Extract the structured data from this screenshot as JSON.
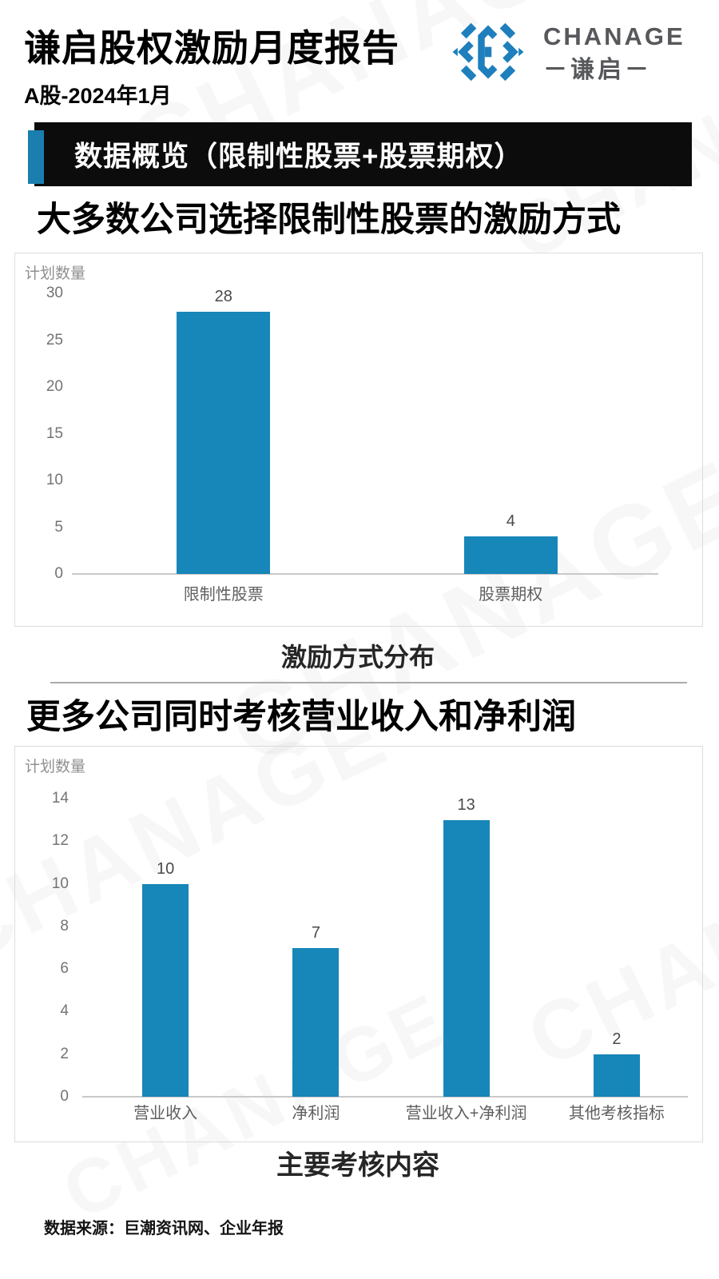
{
  "header": {
    "title": "谦启股权激励月度报告",
    "subtitle": "A股-2024年1月",
    "logo": {
      "brand": "CHANAGE",
      "brand_cn_display": "－谦启－",
      "icon": "diamond-c-icon"
    }
  },
  "banner": {
    "label": "数据概览（限制性股票+股票期权）"
  },
  "colors": {
    "bar": "#1786b8",
    "logo_blue": "#1e7fbc",
    "banner_accent": "#1a7fae",
    "banner_bg": "#0c0c0c"
  },
  "watermark_text": "CHANAGE",
  "chart_data": [
    {
      "type": "bar",
      "title": "大多数公司选择限制性股票的激励方式",
      "caption": "激励方式分布",
      "ylabel": "计划数量",
      "categories": [
        "限制性股票",
        "股票期权"
      ],
      "values": [
        28,
        4
      ],
      "ylim": [
        0,
        30
      ],
      "ytick_step": 5,
      "grid": false,
      "legend": "none",
      "bar_color": "#1786b8"
    },
    {
      "type": "bar",
      "title": "更多公司同时考核营业收入和净利润",
      "caption": "主要考核内容",
      "ylabel": "计划数量",
      "categories": [
        "营业收入",
        "净利润",
        "营业收入+净利润",
        "其他考核指标"
      ],
      "values": [
        10,
        7,
        13,
        2
      ],
      "ylim": [
        0,
        14
      ],
      "ytick_step": 2,
      "grid": false,
      "legend": "none",
      "bar_color": "#1786b8"
    }
  ],
  "footer": {
    "source": "数据来源：巨潮资讯网、企业年报"
  }
}
